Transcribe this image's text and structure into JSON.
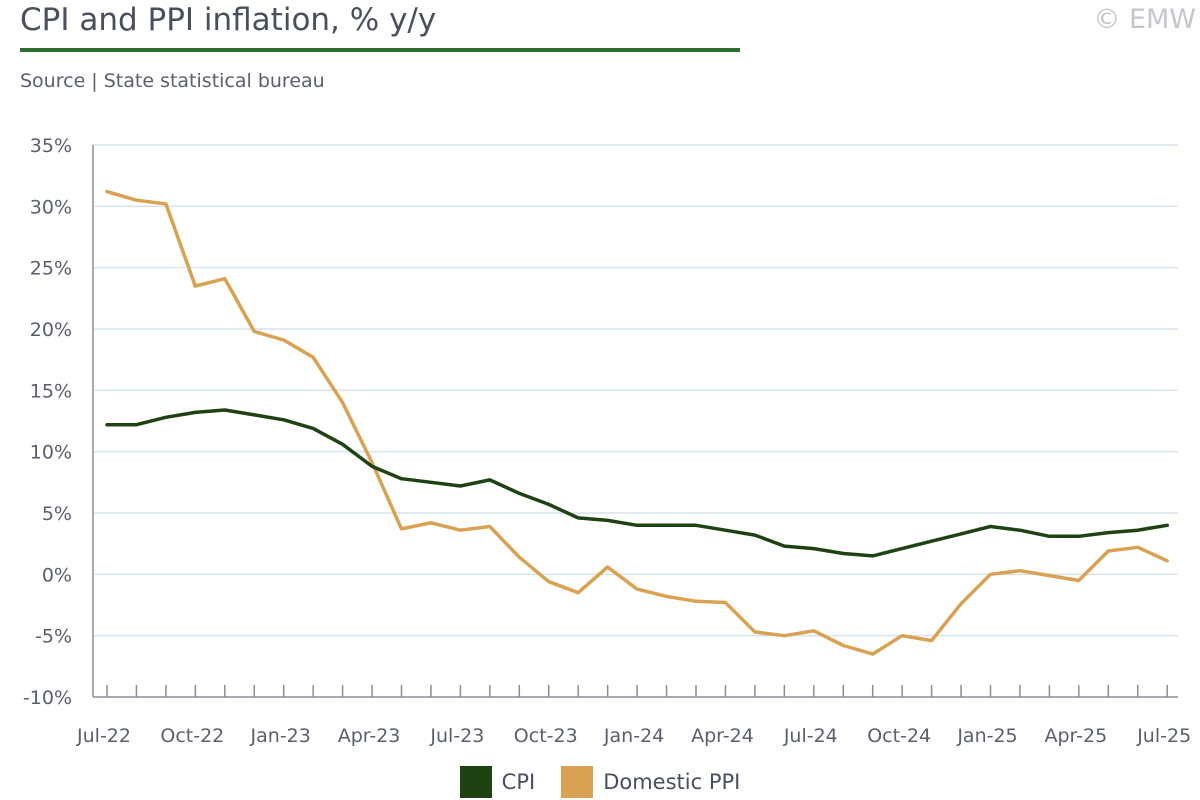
{
  "header": {
    "title": "CPI and PPI inflation, % y/y",
    "copyright": "© EMW",
    "subtitle": "Source | State statistical bureau"
  },
  "colors": {
    "cpi": "#1e4211",
    "ppi": "#d9a152",
    "grid": "#d6e2ee",
    "axis": "#8a8e98",
    "rule": "#2e6b2e"
  },
  "chart_data": {
    "type": "line",
    "title": "CPI and PPI inflation, % y/y",
    "ylim": [
      -10,
      35
    ],
    "y_ticks": [
      35,
      30,
      25,
      20,
      15,
      10,
      5,
      0,
      -5,
      -10
    ],
    "y_tick_labels": [
      "35%",
      "30%",
      "25%",
      "20%",
      "15%",
      "10%",
      "5%",
      "0%",
      "-5%",
      "-10%"
    ],
    "x_tick_labels": [
      "Jul-22",
      "Oct-22",
      "Jan-23",
      "Apr-23",
      "Jul-23",
      "Oct-23",
      "Jan-24",
      "Apr-24",
      "Jul-24",
      "Oct-24",
      "Jan-25",
      "Apr-25",
      "Jul-25"
    ],
    "x": [
      "Jul-22",
      "Aug-22",
      "Sep-22",
      "Oct-22",
      "Nov-22",
      "Dec-22",
      "Jan-23",
      "Feb-23",
      "Mar-23",
      "Apr-23",
      "May-23",
      "Jun-23",
      "Jul-23",
      "Aug-23",
      "Sep-23",
      "Oct-23",
      "Nov-23",
      "Dec-23",
      "Jan-24",
      "Feb-24",
      "Mar-24",
      "Apr-24",
      "May-24",
      "Jun-24",
      "Jul-24",
      "Aug-24",
      "Sep-24",
      "Oct-24",
      "Nov-24",
      "Dec-24",
      "Jan-25",
      "Feb-25",
      "Mar-25",
      "Apr-25",
      "May-25",
      "Jun-25",
      "Jul-25"
    ],
    "grid": true,
    "legend_position": "bottom-center",
    "series": [
      {
        "name": "CPI",
        "color": "#1e4211",
        "values": [
          12.2,
          12.2,
          12.8,
          13.2,
          13.4,
          13.0,
          12.6,
          11.9,
          10.6,
          8.8,
          7.8,
          7.5,
          7.2,
          7.7,
          6.6,
          5.7,
          4.6,
          4.4,
          4.0,
          4.0,
          4.0,
          3.6,
          3.2,
          2.3,
          2.1,
          1.7,
          1.5,
          2.1,
          2.7,
          3.3,
          3.9,
          3.6,
          3.1,
          3.1,
          3.4,
          3.6,
          4.0
        ]
      },
      {
        "name": "Domestic PPI",
        "color": "#d9a152",
        "values": [
          31.2,
          30.5,
          30.2,
          23.5,
          24.1,
          19.8,
          19.1,
          17.7,
          14.0,
          9.1,
          3.7,
          4.2,
          3.6,
          3.9,
          1.4,
          -0.6,
          -1.5,
          0.6,
          -1.2,
          -1.8,
          -2.2,
          -2.3,
          -4.7,
          -5.0,
          -4.6,
          -5.8,
          -6.5,
          -5.0,
          -5.4,
          -2.4,
          0.0,
          0.3,
          -0.1,
          -0.5,
          1.9,
          2.2,
          1.1
        ]
      }
    ]
  }
}
